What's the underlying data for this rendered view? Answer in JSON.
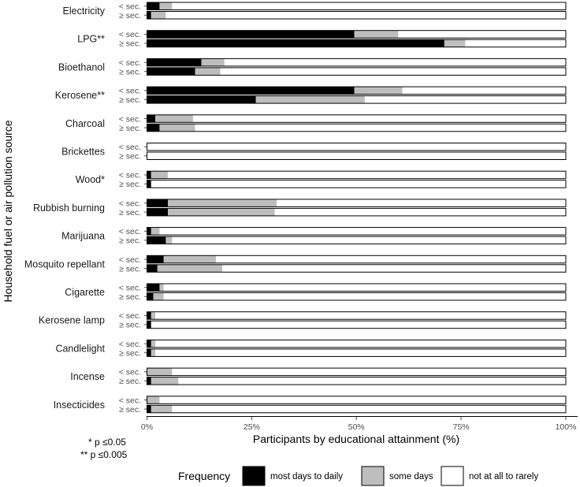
{
  "chart_data": {
    "type": "bar",
    "orientation": "horizontal",
    "stacked": true,
    "xlabel": "Participants by educational attainment (%)",
    "ylabel": "Household fuel or air pollution source",
    "xlim": [
      0,
      100
    ],
    "xticks": [
      "0%",
      "25%",
      "50%",
      "75%",
      "100%"
    ],
    "subgroups": [
      "< sec.",
      "≥ sec."
    ],
    "categories": [
      {
        "name": "Electricity",
        "rows": [
          [
            3,
            3,
            94
          ],
          [
            1,
            3.5,
            95.5
          ]
        ]
      },
      {
        "name": "LPG**",
        "rows": [
          [
            49.5,
            10.5,
            40
          ],
          [
            71,
            5,
            24
          ]
        ]
      },
      {
        "name": "Bioethanol",
        "rows": [
          [
            13,
            5.5,
            81.5
          ],
          [
            11.5,
            6,
            82.5
          ]
        ]
      },
      {
        "name": "Kerosene**",
        "rows": [
          [
            49.5,
            11.5,
            39
          ],
          [
            26,
            26,
            48
          ]
        ]
      },
      {
        "name": "Charcoal",
        "rows": [
          [
            2,
            9,
            89
          ],
          [
            3,
            8.5,
            88.5
          ]
        ]
      },
      {
        "name": "Brickettes",
        "rows": [
          [
            0,
            0,
            100
          ],
          [
            0,
            0,
            100
          ]
        ]
      },
      {
        "name": "Wood*",
        "rows": [
          [
            1,
            4,
            95
          ],
          [
            1,
            0,
            99
          ]
        ]
      },
      {
        "name": "Rubbish burning",
        "rows": [
          [
            5,
            26,
            69
          ],
          [
            5,
            25.5,
            69.5
          ]
        ]
      },
      {
        "name": "Marijuana",
        "rows": [
          [
            1,
            2,
            97
          ],
          [
            4.5,
            1.5,
            94
          ]
        ]
      },
      {
        "name": "Mosquito repellant",
        "rows": [
          [
            4,
            12.5,
            83.5
          ],
          [
            2.5,
            15.5,
            82
          ]
        ]
      },
      {
        "name": "Cigarette",
        "rows": [
          [
            3,
            1,
            96
          ],
          [
            1.5,
            2.5,
            96
          ]
        ]
      },
      {
        "name": "Kerosene lamp",
        "rows": [
          [
            1,
            1,
            98
          ],
          [
            1,
            0,
            99
          ]
        ]
      },
      {
        "name": "Candlelight",
        "rows": [
          [
            1,
            1,
            98
          ],
          [
            1,
            1,
            98
          ]
        ]
      },
      {
        "name": "Incense",
        "rows": [
          [
            0,
            6,
            94
          ],
          [
            1,
            6.5,
            92.5
          ]
        ]
      },
      {
        "name": "Insecticides",
        "rows": [
          [
            0,
            3,
            97
          ],
          [
            1,
            5,
            94
          ]
        ]
      }
    ],
    "legend": {
      "title": "Frequency",
      "position": "bottom",
      "items": [
        {
          "label": "most days to daily",
          "color": "#000000"
        },
        {
          "label": "some days",
          "color": "#bebebe"
        },
        {
          "label": "not at all to rarely",
          "color": "#ffffff"
        }
      ]
    },
    "notes": [
      "* p ≤0.05",
      "** p ≤0.005"
    ]
  }
}
